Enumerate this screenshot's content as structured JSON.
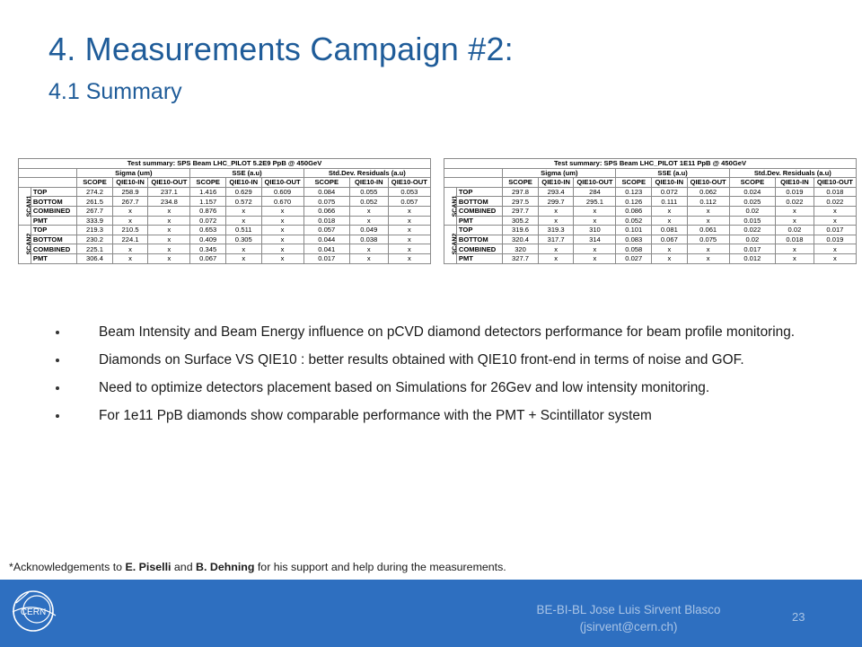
{
  "slide": {
    "title": "4. Measurements Campaign #2:",
    "subtitle": "4.1 Summary"
  },
  "tables": [
    {
      "caption": "Test summary: SPS Beam LHC_PILOT 5.2E9 PpB @ 450GeV",
      "groups": [
        "Sigma (um)",
        "SSE (a.u)",
        "Std.Dev. Residuals (a.u)"
      ],
      "columns": [
        "SCOPE",
        "QIE10-IN",
        "QIE10-OUT",
        "SCOPE",
        "QIE10-IN",
        "QIE10-OUT",
        "SCOPE",
        "QIE10-IN",
        "QIE10-OUT"
      ],
      "sections": [
        {
          "name": "SCAN1",
          "rows": [
            {
              "label": "TOP",
              "values": [
                "274.2",
                "258.9",
                "237.1",
                "1.416",
                "0.629",
                "0.609",
                "0.084",
                "0.055",
                "0.053"
              ]
            },
            {
              "label": "BOTTOM",
              "values": [
                "261.5",
                "267.7",
                "234.8",
                "1.157",
                "0.572",
                "0.670",
                "0.075",
                "0.052",
                "0.057"
              ]
            },
            {
              "label": "COMBINED",
              "values": [
                "267.7",
                "x",
                "x",
                "0.876",
                "x",
                "x",
                "0.066",
                "x",
                "x"
              ]
            },
            {
              "label": "PMT",
              "values": [
                "333.9",
                "x",
                "x",
                "0.072",
                "x",
                "x",
                "0.018",
                "x",
                "x"
              ]
            }
          ]
        },
        {
          "name": "SCAN2",
          "rows": [
            {
              "label": "TOP",
              "values": [
                "219.3",
                "210.5",
                "x",
                "0.653",
                "0.511",
                "x",
                "0.057",
                "0.049",
                "x"
              ]
            },
            {
              "label": "BOTTOM",
              "values": [
                "230.2",
                "224.1",
                "x",
                "0.409",
                "0.305",
                "x",
                "0.044",
                "0.038",
                "x"
              ]
            },
            {
              "label": "COMBINED",
              "values": [
                "225.1",
                "x",
                "x",
                "0.345",
                "x",
                "x",
                "0.041",
                "x",
                "x"
              ]
            },
            {
              "label": "PMT",
              "values": [
                "306.4",
                "x",
                "x",
                "0.067",
                "x",
                "x",
                "0.017",
                "x",
                "x"
              ]
            }
          ]
        }
      ]
    },
    {
      "caption": "Test summary: SPS Beam LHC_PILOT 1E11 PpB @ 450GeV",
      "groups": [
        "Sigma (um)",
        "SSE (a.u)",
        "Std.Dev. Residuals (a.u)"
      ],
      "columns": [
        "SCOPE",
        "QIE10-IN",
        "QIE10-OUT",
        "SCOPE",
        "QIE10-IN",
        "QIE10-OUT",
        "SCOPE",
        "QIE10-IN",
        "QIE10-OUT"
      ],
      "sections": [
        {
          "name": "SCAN1",
          "rows": [
            {
              "label": "TOP",
              "values": [
                "297.8",
                "293.4",
                "284",
                "0.123",
                "0.072",
                "0.062",
                "0.024",
                "0.019",
                "0.018"
              ]
            },
            {
              "label": "BOTTOM",
              "values": [
                "297.5",
                "299.7",
                "295.1",
                "0.126",
                "0.111",
                "0.112",
                "0.025",
                "0.022",
                "0.022"
              ]
            },
            {
              "label": "COMBINED",
              "values": [
                "297.7",
                "x",
                "x",
                "0.086",
                "x",
                "x",
                "0.02",
                "x",
                "x"
              ]
            },
            {
              "label": "PMT",
              "values": [
                "305.2",
                "x",
                "x",
                "0.052",
                "x",
                "x",
                "0.015",
                "x",
                "x"
              ]
            }
          ]
        },
        {
          "name": "SCAN2",
          "rows": [
            {
              "label": "TOP",
              "values": [
                "319.6",
                "319.3",
                "310",
                "0.101",
                "0.081",
                "0.061",
                "0.022",
                "0.02",
                "0.017"
              ]
            },
            {
              "label": "BOTTOM",
              "values": [
                "320.4",
                "317.7",
                "314",
                "0.083",
                "0.067",
                "0.075",
                "0.02",
                "0.018",
                "0.019"
              ]
            },
            {
              "label": "COMBINED",
              "values": [
                "320",
                "x",
                "x",
                "0.058",
                "x",
                "x",
                "0.017",
                "x",
                "x"
              ]
            },
            {
              "label": "PMT",
              "values": [
                "327.7",
                "x",
                "x",
                "0.027",
                "x",
                "x",
                "0.012",
                "x",
                "x"
              ]
            }
          ]
        }
      ]
    }
  ],
  "bullets": [
    "Beam Intensity and Beam Energy influence on pCVD diamond detectors performance for beam profile monitoring.",
    "Diamonds on Surface VS QIE10 : better results obtained with QIE10 front-end in terms of noise and GOF.",
    "Need to optimize detectors placement based on Simulations for 26Gev and low intensity monitoring.",
    "For 1e11 PpB diamonds show comparable performance with the PMT + Scintillator system"
  ],
  "acknowledgement": {
    "prefix": "*Acknowledgements to ",
    "name1": "E. Piselli",
    "and": " and ",
    "name2": "B. Dehning",
    "suffix": " for his support and help during the measurements."
  },
  "footer": {
    "author_line1": "BE-BI-BL Jose Luis Sirvent Blasco",
    "author_line2": "(jsirvent@cern.ch)",
    "page_number": "23",
    "logo_text": "CERN",
    "background_color": "#2e6fc0"
  },
  "colors": {
    "title": "#1f5c99",
    "footer": "#2e6fc0"
  }
}
